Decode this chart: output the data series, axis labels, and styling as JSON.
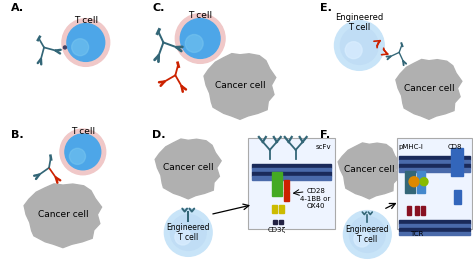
{
  "bg_color": "#ffffff",
  "cell_blue": "#4da6e8",
  "cell_blue_inner": "#3090d8",
  "cell_gray": "#b0b0b0",
  "cell_gray_light": "#c8c8c8",
  "tcell_ring": "#f0c8c8",
  "engineered_ring": "#c8e4f8",
  "red_ab": "#cc2200",
  "teal_ab": "#336677",
  "dark_teal": "#2a5566",
  "green_bar": "#44aa22",
  "red_bar": "#cc2200",
  "yellow_bar": "#ccbb00",
  "dark_navy": "#1a2a5a",
  "mid_blue": "#4a6aaa",
  "font_panel": 8,
  "font_label": 6.5,
  "font_small": 5.0,
  "panels_A_label": "A.",
  "panels_B_label": "B.",
  "panels_C_label": "C.",
  "panels_D_label": "D.",
  "panels_E_label": "E.",
  "panels_F_label": "F.",
  "tcell": "T cell",
  "cancer_cell": "Cancer cell",
  "engineered_tcell": "Engineered\nT cell",
  "scFv": "scFv",
  "cd28": "CD28",
  "bb41": "4-1BB or",
  "ox40": "OX40",
  "cd3z": "CD3ζ",
  "pmhc": "pMHC-I",
  "cd8": "CD8",
  "tcr": "TCR"
}
